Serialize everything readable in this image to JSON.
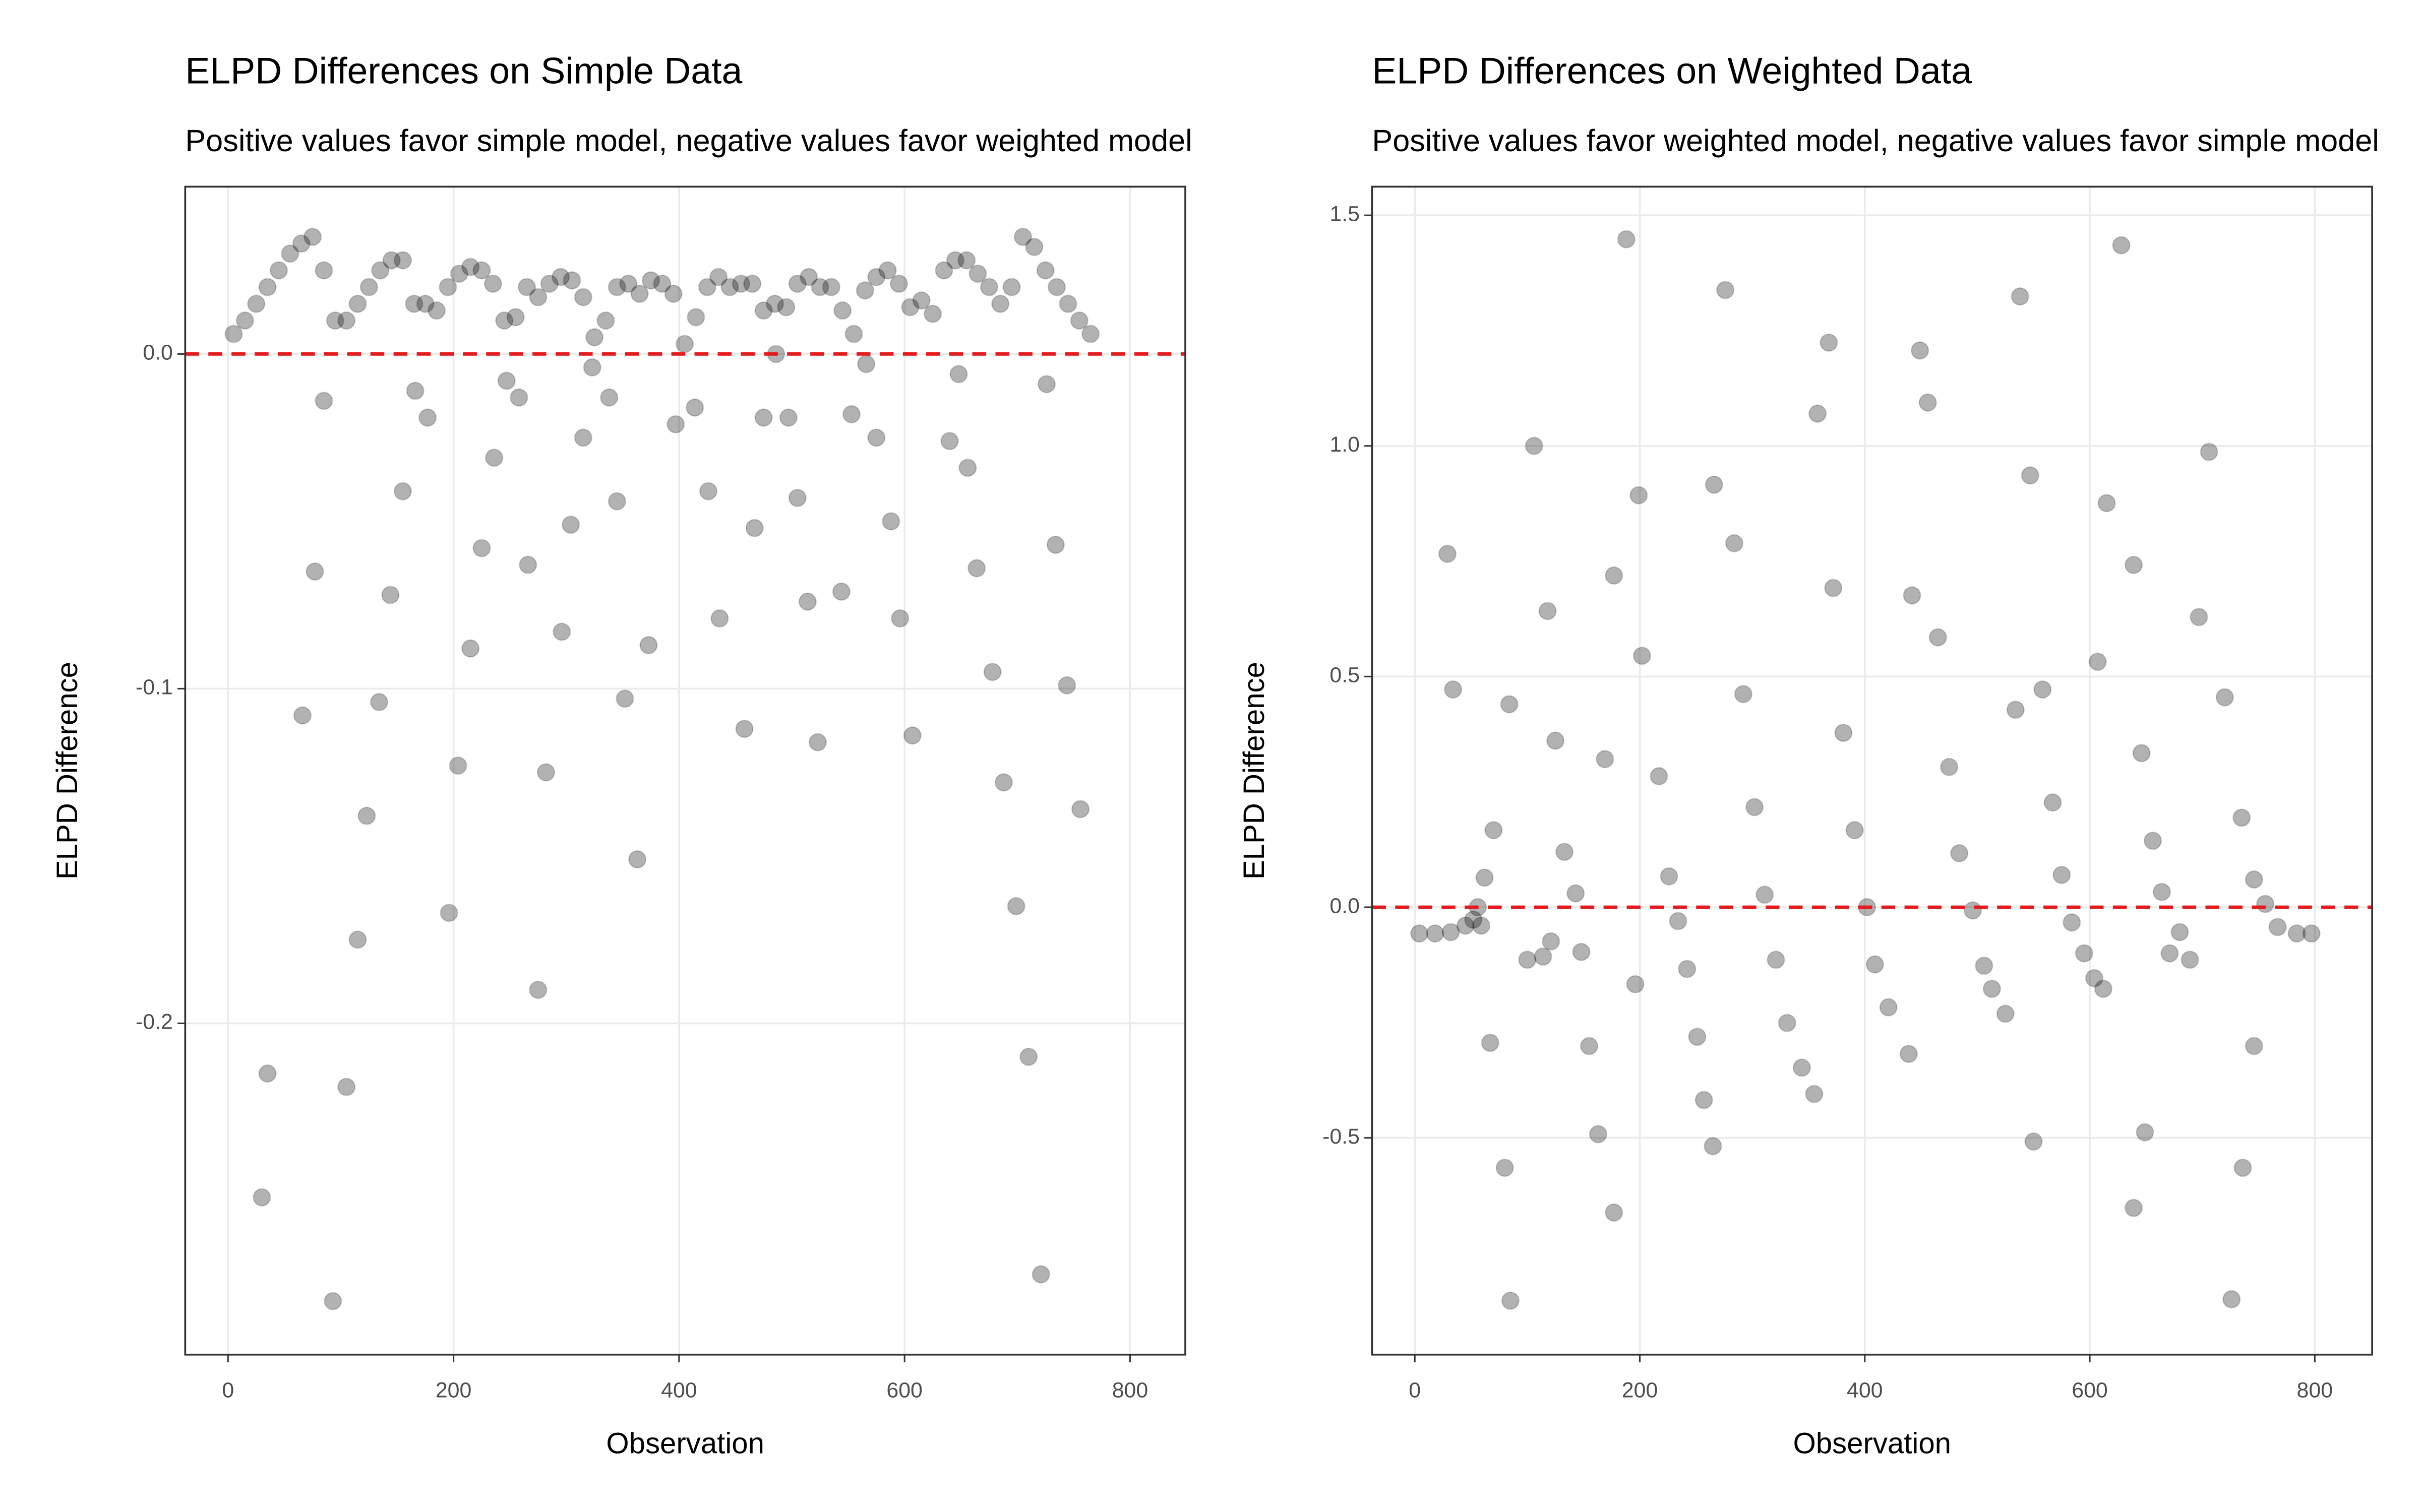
{
  "chart_data": [
    {
      "type": "scatter",
      "title": "ELPD Differences on Simple Data",
      "subtitle": "Positive values favor simple model, negative values favor weighted model",
      "xlabel": "Observation",
      "ylabel": "ELPD Difference",
      "color": "#000000",
      "opacity": 0.3,
      "reference_line": {
        "value": 0,
        "color": "#e41a1c"
      },
      "grid": true,
      "xlim": [
        -38,
        849
      ],
      "ylim": [
        -0.299,
        0.05
      ],
      "xticks": [
        0,
        200,
        400,
        600,
        800
      ],
      "yticks": [
        {
          "value": 0,
          "label": "0.0"
        },
        -0.1,
        -0.2
      ],
      "x": [
        5,
        15,
        25,
        35,
        45,
        55,
        65,
        75,
        85,
        95,
        105,
        115,
        125,
        135,
        145,
        155,
        165,
        175,
        185,
        195,
        205,
        215,
        225,
        235,
        245,
        255,
        265,
        275,
        285,
        295,
        305,
        315,
        325,
        335,
        345,
        355,
        365,
        375,
        385,
        395,
        405,
        415,
        425,
        435,
        445,
        455,
        465,
        475,
        485,
        495,
        505,
        515,
        525,
        535,
        545,
        555,
        565,
        575,
        585,
        595,
        605,
        615,
        625,
        635,
        645,
        655,
        665,
        675,
        685,
        695,
        705,
        715,
        725,
        735,
        745,
        755,
        765,
        30,
        35,
        66,
        77,
        85,
        93,
        105,
        115,
        123,
        134,
        144,
        155,
        166,
        177,
        196,
        204,
        215,
        225,
        236,
        247,
        258,
        266,
        275,
        282,
        296,
        304,
        315,
        323,
        338,
        345,
        352,
        363,
        373,
        397,
        414,
        426,
        436,
        458,
        467,
        475,
        486,
        497,
        505,
        514,
        523,
        544,
        553,
        566,
        575,
        588,
        596,
        607,
        640,
        648,
        656,
        664,
        678,
        688,
        699,
        710,
        721,
        726,
        734,
        744,
        756
      ],
      "values": [
        0.006,
        0.01,
        0.015,
        0.02,
        0.025,
        0.03,
        0.033,
        0.035,
        0.025,
        0.01,
        0.01,
        0.015,
        0.02,
        0.025,
        0.028,
        0.028,
        0.015,
        0.015,
        0.013,
        0.02,
        0.024,
        0.026,
        0.025,
        0.021,
        0.01,
        0.011,
        0.02,
        0.017,
        0.021,
        0.023,
        0.022,
        0.017,
        0.005,
        0.01,
        0.02,
        0.021,
        0.018,
        0.022,
        0.021,
        0.018,
        0.003,
        0.011,
        0.02,
        0.023,
        0.02,
        0.021,
        0.021,
        0.013,
        0.015,
        0.014,
        0.021,
        0.023,
        0.02,
        0.02,
        0.013,
        0.006,
        0.019,
        0.023,
        0.025,
        0.021,
        0.014,
        0.016,
        0.012,
        0.025,
        0.028,
        0.028,
        0.024,
        0.02,
        0.015,
        0.02,
        0.035,
        0.032,
        0.025,
        0.02,
        0.015,
        0.01,
        0.006,
        -0.252,
        -0.215,
        -0.108,
        -0.065,
        -0.014,
        -0.283,
        -0.219,
        -0.175,
        -0.138,
        -0.104,
        -0.072,
        -0.041,
        -0.011,
        -0.019,
        -0.167,
        -0.123,
        -0.088,
        -0.058,
        -0.031,
        -0.008,
        -0.013,
        -0.063,
        -0.19,
        -0.125,
        -0.083,
        -0.051,
        -0.025,
        -0.004,
        -0.013,
        -0.044,
        -0.103,
        -0.151,
        -0.087,
        -0.021,
        -0.016,
        -0.041,
        -0.079,
        -0.112,
        -0.052,
        -0.019,
        0,
        -0.019,
        -0.043,
        -0.074,
        -0.116,
        -0.071,
        -0.018,
        -0.003,
        -0.025,
        -0.05,
        -0.079,
        -0.114,
        -0.026,
        -0.006,
        -0.034,
        -0.064,
        -0.095,
        -0.128,
        -0.165,
        -0.21,
        -0.275,
        -0.009,
        -0.057,
        -0.099,
        -0.136
      ]
    },
    {
      "type": "scatter",
      "title": "ELPD Differences on Weighted Data",
      "subtitle": "Positive values favor weighted model, negative values favor simple model",
      "xlabel": "Observation",
      "ylabel": "ELPD Difference",
      "color": "#000000",
      "opacity": 0.3,
      "reference_line": {
        "value": 0,
        "color": "#e41a1c"
      },
      "grid": true,
      "xlim": [
        -38,
        851
      ],
      "ylim": [
        -0.97,
        1.562
      ],
      "xticks": [
        0,
        200,
        400,
        600,
        800
      ],
      "yticks": [
        1.5,
        {
          "value": 1,
          "label": "1.0"
        },
        0.5,
        {
          "value": 0,
          "label": "0.0"
        },
        -0.5
      ],
      "x": [
        4,
        18,
        32,
        45,
        52,
        56,
        62,
        70,
        84,
        85,
        80,
        67,
        34,
        29,
        59,
        100,
        114,
        121,
        106,
        118,
        125,
        133,
        143,
        148,
        155,
        163,
        177,
        169,
        177,
        188,
        196,
        199,
        202,
        217,
        226,
        234,
        242,
        251,
        257,
        265,
        266,
        276,
        284,
        292,
        302,
        311,
        321,
        331,
        344,
        355,
        358,
        368,
        372,
        381,
        391,
        402,
        409,
        421,
        439,
        442,
        449,
        456,
        465,
        475,
        484,
        496,
        506,
        513,
        525,
        534,
        538,
        547,
        550,
        558,
        567,
        575,
        584,
        595,
        604,
        612,
        615,
        628,
        639,
        646,
        656,
        664,
        671,
        680,
        689,
        697,
        706,
        720,
        735,
        746,
        756,
        767,
        784,
        797,
        726,
        736,
        746,
        607,
        649,
        639
      ],
      "values": [
        -0.057,
        -0.057,
        -0.054,
        -0.04,
        -0.027,
        0,
        0.064,
        0.167,
        0.44,
        -0.853,
        -0.565,
        -0.294,
        0.472,
        0.766,
        -0.04,
        -0.114,
        -0.107,
        -0.074,
        1,
        0.642,
        0.361,
        0.12,
        0.03,
        -0.097,
        -0.301,
        -0.492,
        -0.662,
        0.321,
        0.719,
        1.448,
        -0.167,
        0.893,
        0.545,
        0.284,
        0.067,
        -0.03,
        -0.134,
        -0.281,
        -0.418,
        -0.518,
        0.916,
        1.338,
        0.789,
        0.462,
        0.217,
        0.027,
        -0.114,
        -0.251,
        -0.348,
        -0.405,
        1.07,
        1.224,
        0.692,
        0.378,
        0.167,
        0,
        -0.124,
        -0.217,
        -0.318,
        0.676,
        1.207,
        1.094,
        0.585,
        0.304,
        0.117,
        -0.007,
        -0.127,
        -0.177,
        -0.231,
        0.428,
        1.324,
        0.936,
        -0.508,
        0.472,
        0.227,
        0.07,
        -0.033,
        -0.1,
        -0.154,
        -0.177,
        0.876,
        1.435,
        0.742,
        0.334,
        0.144,
        0.033,
        -0.1,
        -0.054,
        -0.114,
        0.629,
        0.987,
        0.455,
        0.194,
        0.06,
        0.007,
        -0.043,
        -0.057,
        -0.057,
        -0.85,
        -0.565,
        -0.301,
        0.532,
        -0.488,
        -0.652
      ]
    }
  ]
}
